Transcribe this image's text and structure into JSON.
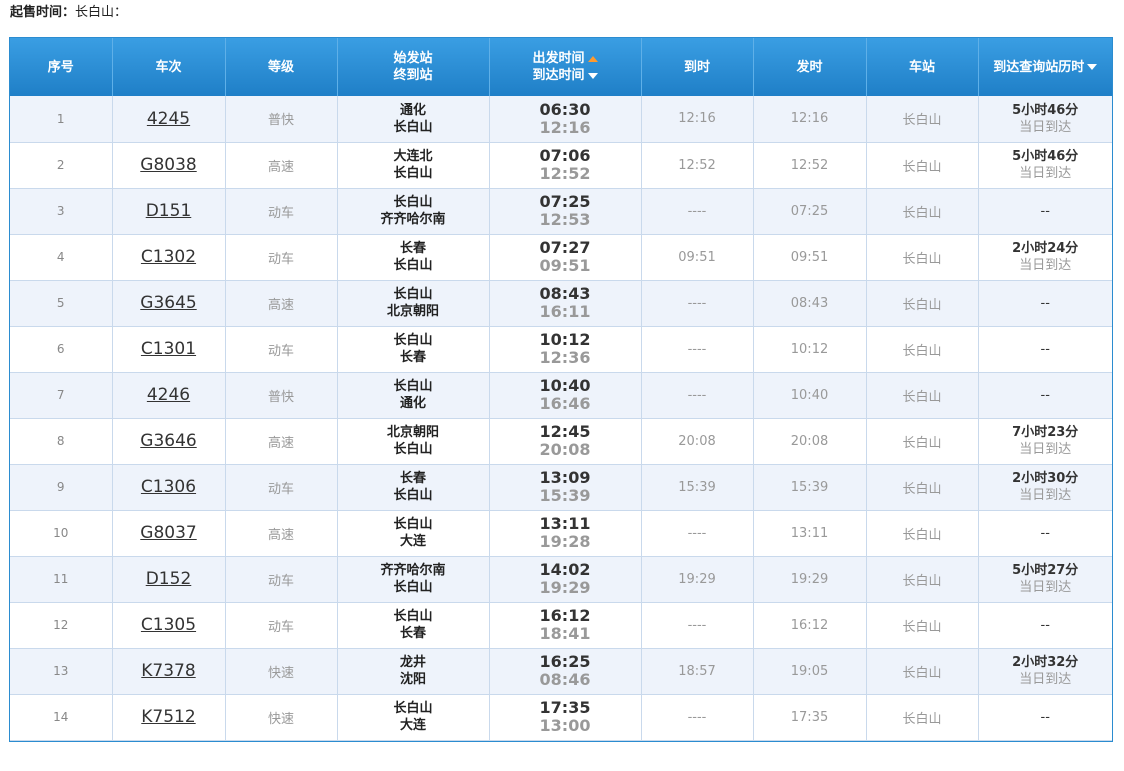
{
  "sale": {
    "label": "起售时间：",
    "station": "长白山："
  },
  "headers": {
    "index": "序号",
    "train": "车次",
    "grade": "等级",
    "origin": "始发站",
    "terminal": "终到站",
    "departure": "出发时间",
    "arrival": "到达时间",
    "arrive_at": "到时",
    "depart_at": "发时",
    "station": "车站",
    "duration": "到达查询站历时"
  },
  "colors": {
    "header": "#2b8cd0",
    "sort_active": "#ff9a2e",
    "row_alt": "#eef3fb"
  },
  "rows": [
    {
      "index": "1",
      "train": "4245",
      "grade": "普快",
      "from": "通化",
      "to": "长白山",
      "dep": "06:30",
      "arr": "12:16",
      "arrive_at": "12:16",
      "depart_at": "12:16",
      "station": "长白山",
      "dur": "5小时46分",
      "note": "当日到达"
    },
    {
      "index": "2",
      "train": "G8038",
      "grade": "高速",
      "from": "大连北",
      "to": "长白山",
      "dep": "07:06",
      "arr": "12:52",
      "arrive_at": "12:52",
      "depart_at": "12:52",
      "station": "长白山",
      "dur": "5小时46分",
      "note": "当日到达"
    },
    {
      "index": "3",
      "train": "D151",
      "grade": "动车",
      "from": "长白山",
      "to": "齐齐哈尔南",
      "dep": "07:25",
      "arr": "12:53",
      "arrive_at": "----",
      "depart_at": "07:25",
      "station": "长白山",
      "dur": "--",
      "note": ""
    },
    {
      "index": "4",
      "train": "C1302",
      "grade": "动车",
      "from": "长春",
      "to": "长白山",
      "dep": "07:27",
      "arr": "09:51",
      "arrive_at": "09:51",
      "depart_at": "09:51",
      "station": "长白山",
      "dur": "2小时24分",
      "note": "当日到达"
    },
    {
      "index": "5",
      "train": "G3645",
      "grade": "高速",
      "from": "长白山",
      "to": "北京朝阳",
      "dep": "08:43",
      "arr": "16:11",
      "arrive_at": "----",
      "depart_at": "08:43",
      "station": "长白山",
      "dur": "--",
      "note": ""
    },
    {
      "index": "6",
      "train": "C1301",
      "grade": "动车",
      "from": "长白山",
      "to": "长春",
      "dep": "10:12",
      "arr": "12:36",
      "arrive_at": "----",
      "depart_at": "10:12",
      "station": "长白山",
      "dur": "--",
      "note": ""
    },
    {
      "index": "7",
      "train": "4246",
      "grade": "普快",
      "from": "长白山",
      "to": "通化",
      "dep": "10:40",
      "arr": "16:46",
      "arrive_at": "----",
      "depart_at": "10:40",
      "station": "长白山",
      "dur": "--",
      "note": ""
    },
    {
      "index": "8",
      "train": "G3646",
      "grade": "高速",
      "from": "北京朝阳",
      "to": "长白山",
      "dep": "12:45",
      "arr": "20:08",
      "arrive_at": "20:08",
      "depart_at": "20:08",
      "station": "长白山",
      "dur": "7小时23分",
      "note": "当日到达"
    },
    {
      "index": "9",
      "train": "C1306",
      "grade": "动车",
      "from": "长春",
      "to": "长白山",
      "dep": "13:09",
      "arr": "15:39",
      "arrive_at": "15:39",
      "depart_at": "15:39",
      "station": "长白山",
      "dur": "2小时30分",
      "note": "当日到达"
    },
    {
      "index": "10",
      "train": "G8037",
      "grade": "高速",
      "from": "长白山",
      "to": "大连",
      "dep": "13:11",
      "arr": "19:28",
      "arrive_at": "----",
      "depart_at": "13:11",
      "station": "长白山",
      "dur": "--",
      "note": ""
    },
    {
      "index": "11",
      "train": "D152",
      "grade": "动车",
      "from": "齐齐哈尔南",
      "to": "长白山",
      "dep": "14:02",
      "arr": "19:29",
      "arrive_at": "19:29",
      "depart_at": "19:29",
      "station": "长白山",
      "dur": "5小时27分",
      "note": "当日到达"
    },
    {
      "index": "12",
      "train": "C1305",
      "grade": "动车",
      "from": "长白山",
      "to": "长春",
      "dep": "16:12",
      "arr": "18:41",
      "arrive_at": "----",
      "depart_at": "16:12",
      "station": "长白山",
      "dur": "--",
      "note": ""
    },
    {
      "index": "13",
      "train": "K7378",
      "grade": "快速",
      "from": "龙井",
      "to": "沈阳",
      "dep": "16:25",
      "arr": "08:46",
      "arrive_at": "18:57",
      "depart_at": "19:05",
      "station": "长白山",
      "dur": "2小时32分",
      "note": "当日到达"
    },
    {
      "index": "14",
      "train": "K7512",
      "grade": "快速",
      "from": "长白山",
      "to": "大连",
      "dep": "17:35",
      "arr": "13:00",
      "arrive_at": "----",
      "depart_at": "17:35",
      "station": "长白山",
      "dur": "--",
      "note": ""
    }
  ]
}
